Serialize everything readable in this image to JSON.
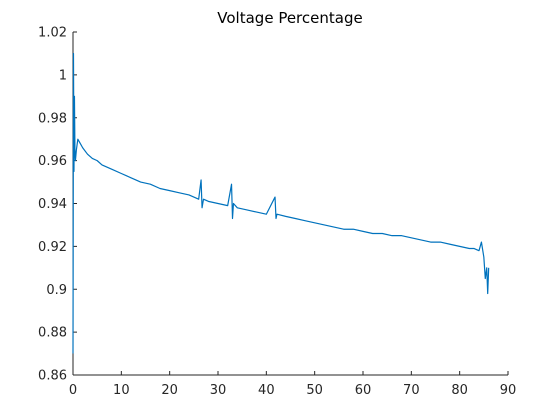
{
  "chart_data": {
    "type": "line",
    "title": "Voltage Percentage",
    "xlabel": "",
    "ylabel": "",
    "xlim": [
      0,
      90
    ],
    "ylim": [
      0.86,
      1.02
    ],
    "xticks": [
      0,
      10,
      20,
      30,
      40,
      50,
      60,
      70,
      80,
      90
    ],
    "xtick_labels": [
      "0",
      "10",
      "20",
      "30",
      "40",
      "50",
      "60",
      "70",
      "80",
      "90"
    ],
    "yticks": [
      0.86,
      0.88,
      0.9,
      0.92,
      0.94,
      0.96,
      0.98,
      1.0,
      1.02
    ],
    "ytick_labels": [
      "0.86",
      "0.88",
      "0.9",
      "0.92",
      "0.94",
      "0.96",
      "0.98",
      "1",
      "1.02"
    ],
    "grid": false,
    "legend": false,
    "colors": {
      "series": "#0072bd",
      "axis": "#262626"
    },
    "series": [
      {
        "x": [
          0,
          0.1,
          0.2,
          0.3,
          0.4,
          0.5,
          0.7,
          1,
          1.5,
          2,
          3,
          4,
          5,
          6,
          8,
          10,
          12,
          14,
          16,
          18,
          20,
          22,
          24,
          26,
          26.5,
          26.7,
          27,
          28,
          30,
          32,
          32.8,
          33,
          33.2,
          34,
          36,
          38,
          40,
          41.8,
          42,
          42.2,
          44,
          46,
          48,
          50,
          52,
          54,
          56,
          58,
          60,
          62,
          64,
          66,
          68,
          70,
          72,
          74,
          76,
          78,
          80,
          82,
          83,
          84,
          84.5,
          85,
          85.3,
          85.6,
          85.8,
          86
        ],
        "y": [
          0.87,
          1.01,
          0.955,
          0.99,
          0.965,
          0.96,
          0.965,
          0.97,
          0.968,
          0.966,
          0.963,
          0.961,
          0.96,
          0.958,
          0.956,
          0.954,
          0.952,
          0.95,
          0.949,
          0.947,
          0.946,
          0.945,
          0.944,
          0.942,
          0.951,
          0.938,
          0.942,
          0.941,
          0.94,
          0.939,
          0.949,
          0.933,
          0.94,
          0.938,
          0.937,
          0.936,
          0.935,
          0.943,
          0.933,
          0.935,
          0.934,
          0.933,
          0.932,
          0.931,
          0.93,
          0.929,
          0.928,
          0.928,
          0.927,
          0.926,
          0.926,
          0.925,
          0.925,
          0.924,
          0.923,
          0.922,
          0.922,
          0.921,
          0.92,
          0.919,
          0.919,
          0.918,
          0.922,
          0.915,
          0.905,
          0.91,
          0.898,
          0.91
        ]
      }
    ]
  }
}
